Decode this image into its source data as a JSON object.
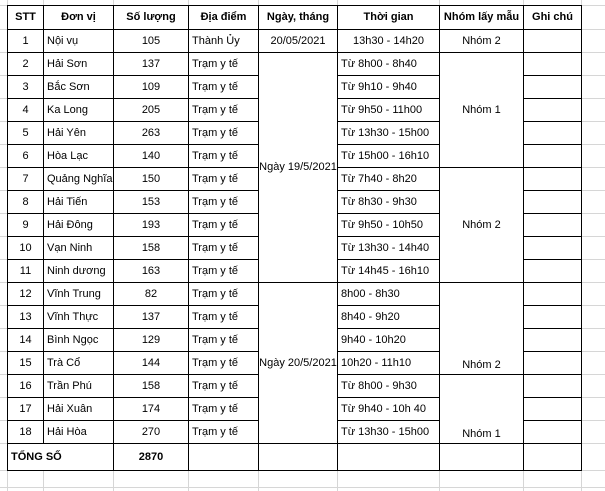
{
  "table": {
    "headers": [
      "STT",
      "Đơn vị",
      "Số lượng",
      "Địa điểm",
      "Ngày, tháng",
      "Thời gian",
      "Nhóm lấy mẫu",
      "Ghi chú"
    ],
    "rows": [
      {
        "stt": "1",
        "unit": "Nội vụ",
        "qty": "105",
        "place": "Thành Ủy",
        "date": "20/05/2021",
        "date_span": 1,
        "time": "13h30 - 14h20",
        "time_center": true,
        "group": "Nhóm 2",
        "group_span": 1,
        "note": ""
      },
      {
        "stt": "2",
        "unit": "Hải Sơn",
        "qty": "137",
        "place": "Trạm y tế",
        "date": "Ngày 19/5/2021",
        "date_span": 10,
        "time": "Từ 8h00 - 8h40",
        "group": "Nhóm 1",
        "group_span": 5,
        "note": ""
      },
      {
        "stt": "3",
        "unit": "Bắc Sơn",
        "qty": "109",
        "place": "Trạm y tế",
        "time": "Từ 9h10 - 9h40",
        "note": ""
      },
      {
        "stt": "4",
        "unit": "Ka Long",
        "qty": "205",
        "place": "Trạm y tế",
        "time": "Từ 9h50 - 11h00",
        "note": ""
      },
      {
        "stt": "5",
        "unit": "Hải Yên",
        "qty": "263",
        "place": "Trạm y tế",
        "time": "Từ 13h30 - 15h00",
        "note": ""
      },
      {
        "stt": "6",
        "unit": "Hòa Lạc",
        "qty": "140",
        "place": "Trạm y tế",
        "time": "Từ 15h00 - 16h10",
        "note": ""
      },
      {
        "stt": "7",
        "unit": "Quảng Nghĩa",
        "qty": "150",
        "place": "Trạm y tế",
        "time": "Từ 7h40 - 8h20",
        "group": "Nhóm 2",
        "group_span": 5,
        "note": ""
      },
      {
        "stt": "8",
        "unit": "Hải Tiến",
        "qty": "153",
        "place": "Trạm y tế",
        "time": "Từ 8h30 - 9h30",
        "note": ""
      },
      {
        "stt": "9",
        "unit": "Hải Đông",
        "qty": "193",
        "place": "Trạm y tế",
        "time": "Từ 9h50 - 10h50",
        "note": ""
      },
      {
        "stt": "10",
        "unit": "Vạn Ninh",
        "qty": "158",
        "place": "Trạm y tế",
        "time": "Từ 13h30 - 14h40",
        "note": ""
      },
      {
        "stt": "11",
        "unit": "Ninh dương",
        "qty": "163",
        "place": "Trạm y tế",
        "time": "Từ 14h45 - 16h10",
        "note": ""
      },
      {
        "stt": "12",
        "unit": "Vĩnh Trung",
        "qty": "82",
        "place": "Trạm y tế",
        "date": "Ngày 20/5/2021",
        "date_span": 7,
        "time": "8h00 - 8h30",
        "group": "Nhóm 2",
        "group_span": 4,
        "group_valign": "bottom",
        "note": ""
      },
      {
        "stt": "13",
        "unit": "Vĩnh Thực",
        "qty": "137",
        "place": "Trạm y tế",
        "time": "8h40 - 9h20",
        "note": ""
      },
      {
        "stt": "14",
        "unit": "Bình Ngọc",
        "qty": "129",
        "place": "Trạm y tế",
        "time": "9h40 - 10h20",
        "note": ""
      },
      {
        "stt": "15",
        "unit": "Trà Cổ",
        "qty": "144",
        "place": "Trạm y tế",
        "time": "10h20 - 11h10",
        "note": ""
      },
      {
        "stt": "16",
        "unit": "Trần Phú",
        "qty": "158",
        "place": "Trạm y tế",
        "time": "Từ 8h00 - 9h30",
        "group": "Nhóm 1",
        "group_span": 3,
        "group_valign": "bottom",
        "note": ""
      },
      {
        "stt": "17",
        "unit": "Hải Xuân",
        "qty": "174",
        "place": "Trạm y tế",
        "time": "Từ 9h40 - 10h 40",
        "note": ""
      },
      {
        "stt": "18",
        "unit": "Hải Hòa",
        "qty": "270",
        "place": "Trạm y tế",
        "time": "Từ 13h30 - 15h00",
        "note": ""
      }
    ],
    "total": {
      "label": "TỔNG SỐ",
      "qty": "2870"
    }
  },
  "colors": {
    "cell_border": "#000000",
    "gridline": "#d6d6d6",
    "background": "#ffffff",
    "text": "#000000"
  }
}
